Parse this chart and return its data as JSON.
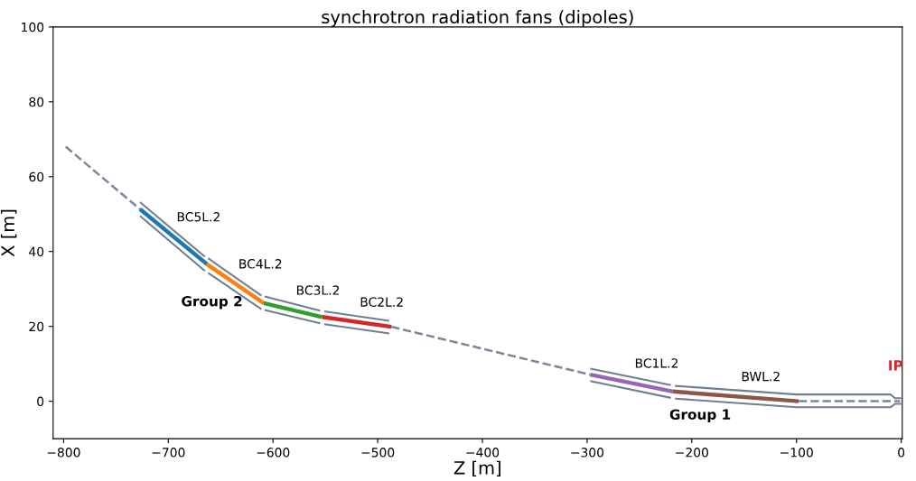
{
  "chart_data": {
    "type": "line",
    "title": "synchrotron radiation fans (dipoles)",
    "xlabel": "Z [m]",
    "ylabel": "X [m]",
    "xlim": [
      -810,
      1
    ],
    "ylim": [
      -10,
      100
    ],
    "xticks": [
      {
        "value": -800,
        "label": "−800"
      },
      {
        "value": -700,
        "label": "−700"
      },
      {
        "value": -600,
        "label": "−600"
      },
      {
        "value": -500,
        "label": "−500"
      },
      {
        "value": -400,
        "label": "−400"
      },
      {
        "value": -300,
        "label": "−300"
      },
      {
        "value": -200,
        "label": "−200"
      },
      {
        "value": -100,
        "label": "−100"
      },
      0
    ],
    "yticks": [
      0,
      20,
      40,
      60,
      80,
      100
    ],
    "grid": false,
    "marker": "none",
    "series": [
      {
        "color": "#778899",
        "line_style": "dashed",
        "x": [
          -798,
          -727,
          -600,
          -487,
          -297,
          -200,
          -98,
          -1
        ],
        "values": [
          68,
          51.3,
          null,
          19.9,
          7.1,
          null,
          0,
          0
        ]
      },
      {
        "color": "#708090",
        "line_style": "solid",
        "x": [
          -727,
          -665,
          -663,
          -662,
          -611,
          -610,
          -608,
          -555,
          -553,
          -551,
          -489
        ],
        "values": [
          53.2,
          38.6,
          null,
          38.2,
          28.2,
          null,
          28,
          24.2,
          null,
          24,
          21.5
        ]
      },
      {
        "color": "#708090",
        "line_style": "solid",
        "x": [
          -727,
          -665,
          -663,
          -662,
          -611,
          -610,
          -608,
          -555,
          -553,
          -551,
          -489
        ],
        "values": [
          49.5,
          34.8,
          null,
          34.3,
          24.6,
          null,
          24.4,
          20.8,
          null,
          20.6,
          18.1
        ]
      },
      {
        "color": "#708090",
        "line_style": "solid",
        "x": [
          -297,
          -220
        ],
        "values": [
          8.7,
          4.3
        ]
      },
      {
        "color": "#708090",
        "line_style": "solid",
        "x": [
          -297,
          -220
        ],
        "values": [
          5.4,
          0.9
        ]
      },
      {
        "color": "#708090",
        "line_style": "solid",
        "x": [
          -216,
          -100,
          -10,
          -6,
          0
        ],
        "values": [
          4.1,
          1.8,
          1.8,
          0.8,
          0.8
        ]
      },
      {
        "color": "#708090",
        "line_style": "solid",
        "x": [
          -216,
          -100,
          -10,
          -6,
          0
        ],
        "values": [
          0.7,
          -1.6,
          -1.6,
          -0.7,
          -0.7
        ]
      },
      {
        "name": "BC5L.2",
        "color": "#1f77b4",
        "line_style": "solid",
        "x": [
          -727,
          -663
        ],
        "values": [
          51.3,
          36.6
        ]
      },
      {
        "name": "BC4L.2",
        "color": "#ff7f0e",
        "line_style": "solid",
        "x": [
          -663,
          -609
        ],
        "values": [
          36.6,
          26.2
        ]
      },
      {
        "name": "BC3L.2",
        "color": "#2ca02c",
        "line_style": "solid",
        "x": [
          -609,
          -553
        ],
        "values": [
          26.2,
          22.5
        ]
      },
      {
        "name": "BC2L.2",
        "color": "#d62728",
        "line_style": "solid",
        "x": [
          -553,
          -487
        ],
        "values": [
          22.5,
          19.9
        ]
      },
      {
        "name": "BC1L.2",
        "color": "#9467bd",
        "line_style": "solid",
        "x": [
          -297,
          -218
        ],
        "values": [
          7.1,
          2.6
        ]
      },
      {
        "name": "BWL.2",
        "color": "#8c564b",
        "line_style": "solid",
        "x": [
          -218,
          -98
        ],
        "values": [
          2.6,
          0
        ]
      }
    ],
    "annotations": [
      "Group 2",
      "Group 1",
      "IP"
    ]
  }
}
